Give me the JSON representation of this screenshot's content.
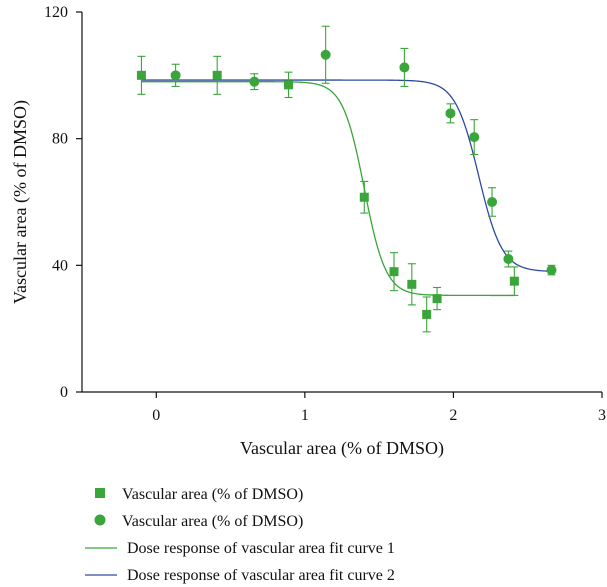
{
  "chart_data": {
    "type": "scatter",
    "title": "",
    "xlabel": "Vascular area (% of DMSO)",
    "ylabel": "Vascular area (% of DMSO)",
    "xlim": [
      -0.5,
      3
    ],
    "ylim": [
      0,
      120
    ],
    "xticks": [
      "0",
      "1",
      "2",
      "3"
    ],
    "yticks": [
      "0",
      "40",
      "80",
      "120"
    ],
    "grid": false,
    "legend_position": "bottom",
    "colors": {
      "series1": "#3aa53a",
      "series2": "#3aa53a",
      "fit1": "#3aa53a",
      "fit2": "#2e4a9e"
    },
    "series": [
      {
        "name": "Vascular area (% of DMSO)",
        "marker": "square",
        "points": [
          {
            "x": -0.1,
            "y": 100,
            "err": 6
          },
          {
            "x": 0.41,
            "y": 100,
            "err": 6
          },
          {
            "x": 0.89,
            "y": 97,
            "err": 4
          },
          {
            "x": 1.4,
            "y": 61.5,
            "err": 5
          },
          {
            "x": 1.6,
            "y": 38,
            "err": 6
          },
          {
            "x": 1.72,
            "y": 34,
            "err": 6.5
          },
          {
            "x": 1.82,
            "y": 24.5,
            "err": 5.5
          },
          {
            "x": 1.89,
            "y": 29.5,
            "err": 3.5
          },
          {
            "x": 2.41,
            "y": 35,
            "err": 4.5
          }
        ]
      },
      {
        "name": "Vascular area (% of DMSO)",
        "marker": "circle",
        "points": [
          {
            "x": 0.13,
            "y": 100,
            "err": 3.5
          },
          {
            "x": 0.66,
            "y": 98,
            "err": 2.5
          },
          {
            "x": 1.14,
            "y": 106.5,
            "err": 9
          },
          {
            "x": 1.67,
            "y": 102.5,
            "err": 6
          },
          {
            "x": 1.98,
            "y": 88,
            "err": 3
          },
          {
            "x": 2.14,
            "y": 80.5,
            "err": 5.5
          },
          {
            "x": 2.26,
            "y": 60,
            "err": 4.5
          },
          {
            "x": 2.37,
            "y": 42,
            "err": 2.5
          },
          {
            "x": 2.66,
            "y": 38.5,
            "err": 1.5
          }
        ]
      },
      {
        "name": "Dose response of vascular area fit curve 1",
        "type": "line",
        "fit": {
          "bottom": 30.5,
          "top": 98,
          "logx0": 1.4,
          "hill": 6,
          "xrange": [
            -0.1,
            2.41
          ]
        }
      },
      {
        "name": "Dose response of vascular area fit curve 2",
        "type": "line",
        "fit": {
          "bottom": 38,
          "top": 98.5,
          "logx0": 2.17,
          "hill": 5.5,
          "xrange": [
            -0.1,
            2.66
          ]
        }
      }
    ]
  }
}
